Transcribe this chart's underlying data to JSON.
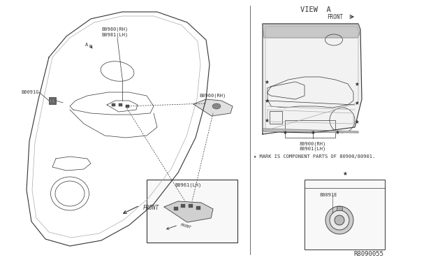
{
  "bg_color": "#ffffff",
  "line_color": "#333333",
  "gray_line": "#888888",
  "light_line": "#aaaaaa",
  "labels": {
    "b0980_rh": "B0980(RH)",
    "b0981_lh": "B0981(LH)",
    "b0091g": "B0091G",
    "b0960_rh": "B0960(RH)",
    "b0961_lh": "B0961(LH)",
    "front_main": "FRONT",
    "view_a": "VIEW  A",
    "front_view": "FRONT",
    "b80900_rh": "80900(RH)",
    "b80901_lh": "80901(LH)",
    "star_note": "★ MARK IS COMPONENT PARTS OF 80900/80901.",
    "b80091e": "80091E",
    "diagram_id": "R8090055",
    "a_label": "A"
  },
  "font_sizes": {
    "label": 5.0,
    "small": 4.5,
    "note": 5.0,
    "id": 6.5,
    "view": 7.5
  }
}
